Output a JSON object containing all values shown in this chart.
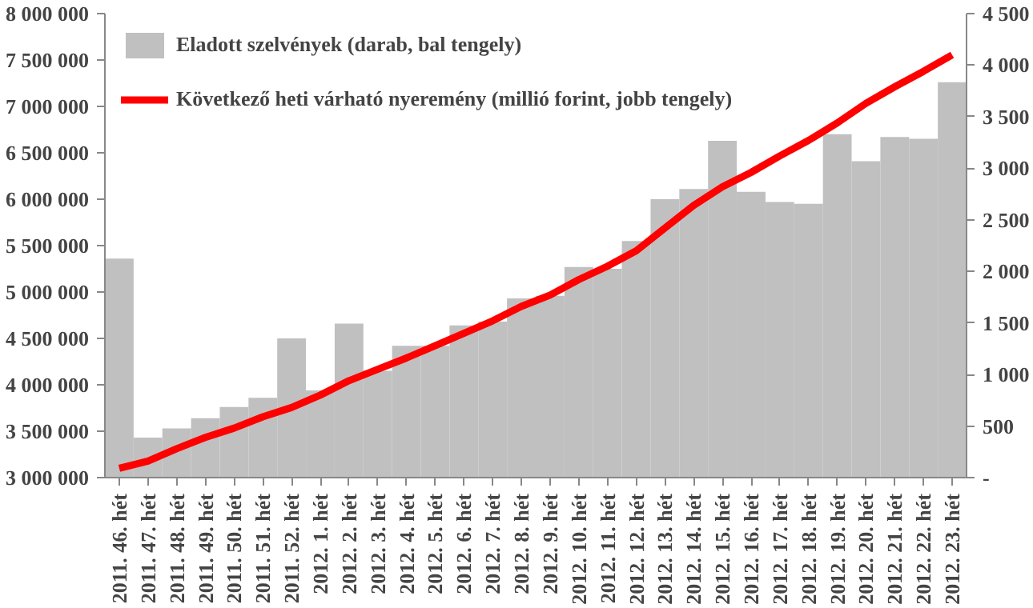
{
  "chart_data": {
    "type": "bar",
    "categories": [
      "2011. 46. hét",
      "2011. 47. hét",
      "2011. 48. hét",
      "2011. 49. hét",
      "2011. 50. hét",
      "2011. 51. hét",
      "2011. 52. hét",
      "2012. 1. hét",
      "2012. 2. hét",
      "2012. 3. hét",
      "2012. 4. hét",
      "2012. 5. hét",
      "2012. 6. hét",
      "2012. 7. hét",
      "2012. 8. hét",
      "2012. 9. hét",
      "2012. 10. hét",
      "2012. 11. hét",
      "2012. 12. hét",
      "2012. 13. hét",
      "2012. 14. hét",
      "2012. 15. hét",
      "2012. 16. hét",
      "2012. 17. hét",
      "2012. 18. hét",
      "2012. 19. hét",
      "2012. 20. hét",
      "2012. 21. hét",
      "2012. 22. hét",
      "2012. 23. hét"
    ],
    "series": [
      {
        "name": "Eladott szelvények (darab, bal tengely)",
        "color": "#c0c0c0",
        "values": [
          5360000,
          3430000,
          3530000,
          3640000,
          3760000,
          3860000,
          4500000,
          3940000,
          4660000,
          4150000,
          4420000,
          4420000,
          4640000,
          4680000,
          4930000,
          4960000,
          5270000,
          5250000,
          5550000,
          6000000,
          6110000,
          6630000,
          6080000,
          5970000,
          5950000,
          6700000,
          6410000,
          6670000,
          6650000,
          7260000
        ]
      },
      {
        "name": "Következő heti várható nyeremény (millió forint, jobb tengely)",
        "type": "line",
        "axis": "y2",
        "color": "#ff0000",
        "values": [
          90,
          160,
          280,
          390,
          480,
          590,
          680,
          800,
          940,
          1050,
          1160,
          1280,
          1400,
          1520,
          1660,
          1770,
          1920,
          2050,
          2200,
          2420,
          2640,
          2820,
          2960,
          3120,
          3270,
          3440,
          3630,
          3790,
          3940,
          4100
        ]
      }
    ],
    "ylim": [
      3000000,
      8000000
    ],
    "yticks": [
      {
        "value": 3000000,
        "label": "3 000 000"
      },
      {
        "value": 3500000,
        "label": "3 500 000"
      },
      {
        "value": 4000000,
        "label": "4 000 000"
      },
      {
        "value": 4500000,
        "label": "4 500 000"
      },
      {
        "value": 5000000,
        "label": "5 000 000"
      },
      {
        "value": 5500000,
        "label": "5 500 000"
      },
      {
        "value": 6000000,
        "label": "6 000 000"
      },
      {
        "value": 6500000,
        "label": "6 500 000"
      },
      {
        "value": 7000000,
        "label": "7 000 000"
      },
      {
        "value": 7500000,
        "label": "7 500 000"
      },
      {
        "value": 8000000,
        "label": "8 000 000"
      }
    ],
    "y2lim": [
      0,
      4500
    ],
    "y2ticks": [
      {
        "value": 0,
        "label": "-"
      },
      500,
      {
        "value": 1000,
        "label": "1 000"
      },
      {
        "value": 1500,
        "label": "1 500"
      },
      {
        "value": 2000,
        "label": "2 000"
      },
      {
        "value": 2500,
        "label": "2 500"
      },
      {
        "value": 3000,
        "label": "3 000"
      },
      {
        "value": 3500,
        "label": "3 500"
      },
      {
        "value": 4000,
        "label": "4 000"
      },
      {
        "value": 4500,
        "label": "4 500"
      }
    ],
    "grid": false,
    "legend": "top left"
  }
}
